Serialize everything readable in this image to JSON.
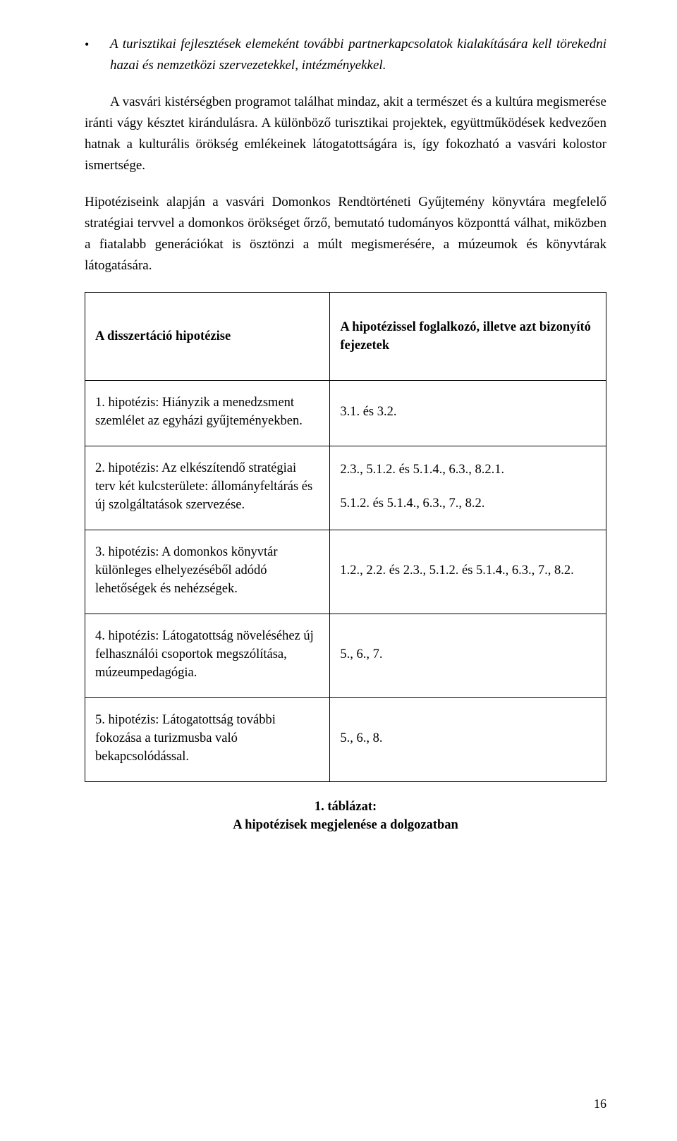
{
  "bullet": {
    "dot": "•",
    "text": "A turisztikai fejlesztések elemeként további partnerkapcsolatok kialakítására kell törekedni hazai és nemzetközi szervezetekkel, intézményekkel."
  },
  "paragraphs": {
    "p1": "A vasvári kistérségben programot találhat mindaz, akit a természet és a kultúra megismerése iránti vágy késztet kirándulásra. A különböző turisztikai projektek, együttműködések kedvezően hatnak a kulturális örökség emlékeinek látogatottságára is, így fokozható a vasvári kolostor ismertsége.",
    "p2": "Hipotéziseink alapján a vasvári Domonkos Rendtörténeti Gyűjtemény könyvtára megfelelő stratégiai tervvel a domonkos örökséget őrző, bemutató tudományos központtá válhat, miközben a fiatalabb generációkat is ösztönzi a múlt megismerésére, a múzeumok és könyvtárak látogatására."
  },
  "table": {
    "header": {
      "left": "A disszertáció hipotézise",
      "right": "A hipotézissel foglalkozó, illetve azt bizonyító fejezetek"
    },
    "rows": [
      {
        "left": "1. hipotézis: Hiányzik a menedzsment szemlélet az egyházi gyűjteményekben.",
        "right": "3.1. és 3.2."
      },
      {
        "left": "2. hipotézis: Az elkészítendő stratégiai terv két kulcsterülete: állományfeltárás és új szolgáltatások szervezése.",
        "right_a": "2.3., 5.1.2. és 5.1.4., 6.3., 8.2.1.",
        "right_b": "5.1.2. és 5.1.4., 6.3., 7., 8.2."
      },
      {
        "left": "3. hipotézis: A domonkos könyvtár különleges elhelyezéséből adódó lehetőségek és nehézségek.",
        "right": "1.2., 2.2. és 2.3., 5.1.2. és 5.1.4., 6.3., 7., 8.2."
      },
      {
        "left": "4. hipotézis: Látogatottság növeléséhez új felhasználói csoportok megszólítása, múzeumpedagógia.",
        "right": "5., 6., 7."
      },
      {
        "left": "5. hipotézis: Látogatottság további fokozása a turizmusba való bekapcsolódással.",
        "right": "5., 6., 8."
      }
    ]
  },
  "caption": {
    "line1": "1. táblázat:",
    "line2": "A hipotézisek megjelenése a dolgozatban"
  },
  "page_number": "16"
}
